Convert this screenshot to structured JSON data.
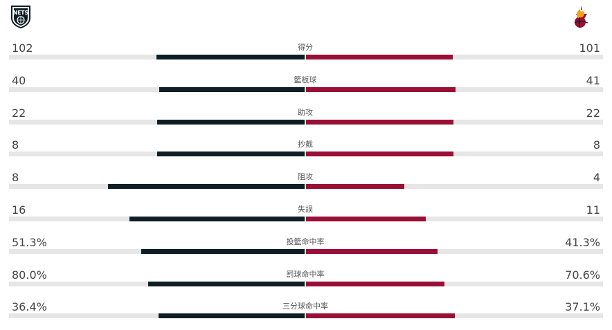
{
  "teams": {
    "home": {
      "logo_text": "NETS",
      "logo_icon": "brooklyn-nets-logo-icon",
      "color": "#0f1e24"
    },
    "away": {
      "logo_icon": "miami-heat-logo-icon",
      "color": "#9a0f36"
    }
  },
  "chart_data": {
    "type": "bar",
    "orientation": "horizontal-diverging",
    "categories": [
      "得分",
      "籃板球",
      "助攻",
      "抄截",
      "阻攻",
      "失誤",
      "投籃命中率",
      "罰球命中率",
      "三分球命中率"
    ],
    "series": [
      {
        "values": [
          102,
          40,
          22,
          8,
          8,
          16,
          51.3,
          80.0,
          36.4
        ],
        "labels": [
          "102",
          "40",
          "22",
          "8",
          "8",
          "16",
          "51.3%",
          "80.0%",
          "36.4%"
        ]
      },
      {
        "values": [
          101,
          41,
          22,
          8,
          4,
          11,
          41.3,
          70.6,
          37.1
        ],
        "labels": [
          "101",
          "41",
          "22",
          "8",
          "4",
          "11",
          "41.3%",
          "70.6%",
          "37.1%"
        ]
      }
    ]
  }
}
